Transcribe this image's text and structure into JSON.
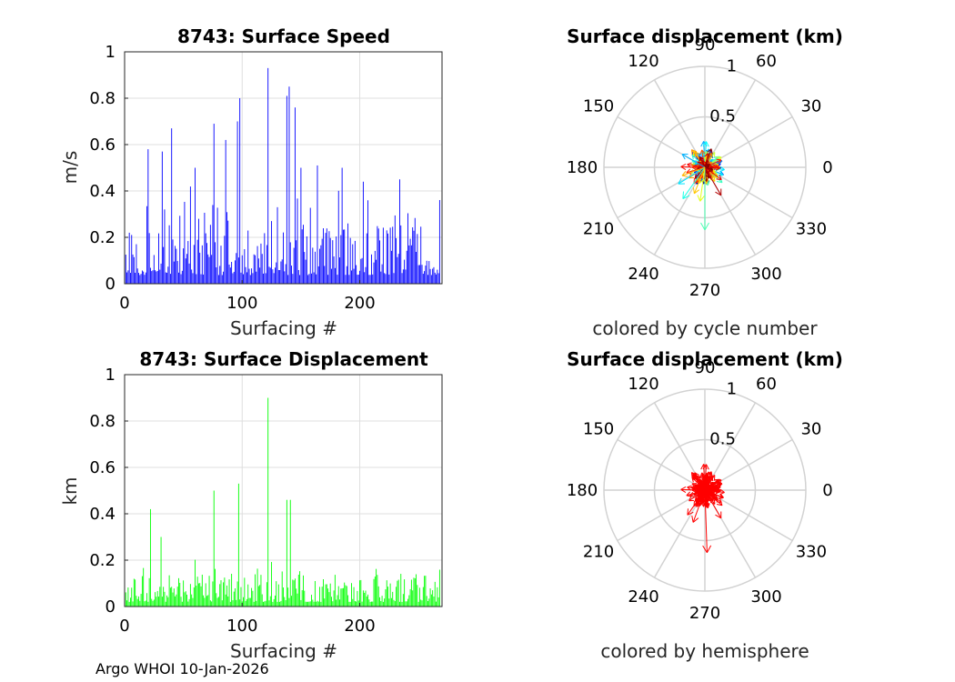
{
  "figure": {
    "footer": "Argo WHOI 10-Jan-2026"
  },
  "chart_data": [
    {
      "id": "speed",
      "type": "bar",
      "title": "8743: Surface Speed",
      "xlabel": "Surfacing #",
      "ylabel": "m/s",
      "xlim": [
        0,
        270
      ],
      "ylim": [
        0,
        1
      ],
      "xticks": [
        "0",
        "100",
        "200"
      ],
      "yticks": [
        "0",
        "0.2",
        "0.4",
        "0.6",
        "0.8",
        "1"
      ],
      "color": "#0000ff",
      "grid": true,
      "n_bars": 268,
      "peaks": [
        {
          "x": 20,
          "value": 0.58
        },
        {
          "x": 32,
          "value": 0.57
        },
        {
          "x": 40,
          "value": 0.67
        },
        {
          "x": 60,
          "value": 0.5
        },
        {
          "x": 76,
          "value": 0.69
        },
        {
          "x": 86,
          "value": 0.62
        },
        {
          "x": 96,
          "value": 0.7
        },
        {
          "x": 98,
          "value": 0.8
        },
        {
          "x": 122,
          "value": 0.93
        },
        {
          "x": 138,
          "value": 0.81
        },
        {
          "x": 140,
          "value": 0.85
        },
        {
          "x": 145,
          "value": 0.76
        },
        {
          "x": 150,
          "value": 0.5
        },
        {
          "x": 164,
          "value": 0.51
        },
        {
          "x": 185,
          "value": 0.5
        },
        {
          "x": 203,
          "value": 0.44
        },
        {
          "x": 234,
          "value": 0.45
        }
      ],
      "base_level": 0.15
    },
    {
      "id": "displacement",
      "type": "bar",
      "title": "8743: Surface Displacement",
      "xlabel": "Surfacing #",
      "ylabel": "km",
      "xlim": [
        0,
        270
      ],
      "ylim": [
        0,
        1
      ],
      "xticks": [
        "0",
        "100",
        "200"
      ],
      "yticks": [
        "0",
        "0.2",
        "0.4",
        "0.6",
        "0.8",
        "1"
      ],
      "color": "#00ff00",
      "grid": true,
      "n_bars": 268,
      "peaks": [
        {
          "x": 22,
          "value": 0.42
        },
        {
          "x": 31,
          "value": 0.3
        },
        {
          "x": 76,
          "value": 0.5
        },
        {
          "x": 97,
          "value": 0.53
        },
        {
          "x": 122,
          "value": 0.9
        },
        {
          "x": 138,
          "value": 0.46
        },
        {
          "x": 141,
          "value": 0.46
        }
      ],
      "base_level": 0.08
    },
    {
      "id": "polar_cycle",
      "type": "polar-quiver",
      "title": "Surface displacement (km)",
      "caption": "colored by cycle number",
      "rlim": [
        0,
        1
      ],
      "rticks": [
        "0.5",
        "1"
      ],
      "angle_ticks": [
        "0",
        "30",
        "60",
        "90",
        "120",
        "150",
        "180",
        "210",
        "240",
        "270",
        "300",
        "330"
      ],
      "color_mode": "cycle",
      "highlights": [
        {
          "angle": 270,
          "r": 0.62,
          "cycle_frac": 0.45
        },
        {
          "angle": 262,
          "r": 0.34,
          "cycle_frac": 0.6
        },
        {
          "angle": 300,
          "r": 0.32,
          "cycle_frac": 0.95
        },
        {
          "angle": 235,
          "r": 0.38,
          "cycle_frac": 0.4
        },
        {
          "angle": 212,
          "r": 0.31,
          "cycle_frac": 0.35
        },
        {
          "angle": 150,
          "r": 0.26,
          "cycle_frac": 0.3
        },
        {
          "angle": 200,
          "r": 0.24,
          "cycle_frac": 0.7
        },
        {
          "angle": 248,
          "r": 0.28,
          "cycle_frac": 0.68
        }
      ]
    },
    {
      "id": "polar_hemisphere",
      "type": "polar-quiver",
      "title": "Surface displacement (km)",
      "caption": "colored by hemisphere",
      "rlim": [
        0,
        1
      ],
      "rticks": [
        "0.5",
        "1"
      ],
      "angle_ticks": [
        "0",
        "30",
        "60",
        "90",
        "120",
        "150",
        "180",
        "210",
        "240",
        "270",
        "300",
        "330"
      ],
      "color_mode": "hemisphere",
      "color": "#ff0000",
      "highlights": [
        {
          "angle": 272,
          "r": 0.62
        },
        {
          "angle": 250,
          "r": 0.34
        },
        {
          "angle": 300,
          "r": 0.32
        },
        {
          "angle": 120,
          "r": 0.2
        },
        {
          "angle": 235,
          "r": 0.3
        }
      ]
    }
  ]
}
